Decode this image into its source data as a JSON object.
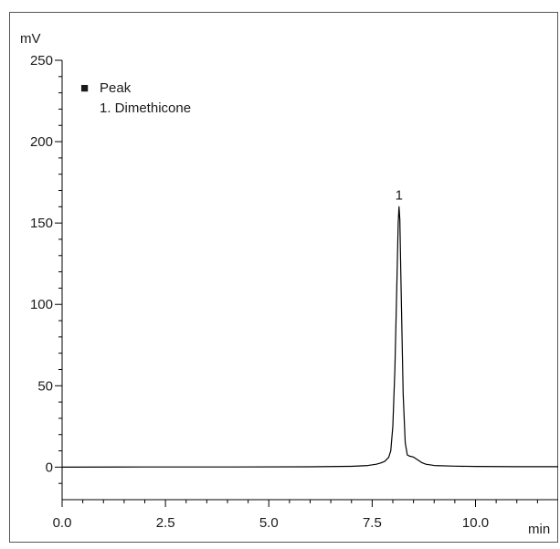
{
  "chart_data": {
    "type": "line",
    "title": "",
    "xlabel": "min",
    "ylabel": "mV",
    "xlim": [
      0,
      12
    ],
    "ylim": [
      -20,
      250
    ],
    "x_ticks": [
      0.0,
      2.5,
      5.0,
      7.5,
      10.0
    ],
    "x_tick_labels": [
      "0.0",
      "2.5",
      "5.0",
      "7.5",
      "10.0"
    ],
    "y_ticks": [
      0,
      50,
      100,
      150,
      200,
      250
    ],
    "y_tick_labels": [
      "0",
      "50",
      "100",
      "150",
      "200",
      "250"
    ],
    "grid": false,
    "legend": {
      "placement": "top-left",
      "marker": "■",
      "title": "Peak",
      "entries": [
        "1. Dimethicone"
      ]
    },
    "annotations": [
      {
        "text": "1",
        "x": 8.15,
        "y": 160
      }
    ],
    "series": [
      {
        "color": "#000000",
        "x": [
          0.0,
          2.0,
          4.0,
          6.0,
          7.0,
          7.4,
          7.6,
          7.7,
          7.8,
          7.9,
          7.95,
          8.0,
          8.05,
          8.1,
          8.13,
          8.15,
          8.17,
          8.2,
          8.25,
          8.3,
          8.35,
          8.4,
          8.5,
          8.6,
          8.7,
          8.8,
          9.0,
          9.5,
          10.0,
          11.0,
          12.0
        ],
        "y": [
          0.0,
          0.1,
          0.1,
          0.2,
          0.5,
          1.0,
          1.8,
          2.5,
          3.5,
          6.0,
          10.0,
          25.0,
          60.0,
          115.0,
          150.0,
          160.0,
          152.0,
          110.0,
          45.0,
          15.0,
          7.5,
          6.8,
          6.2,
          4.5,
          2.8,
          1.8,
          1.0,
          0.6,
          0.4,
          0.3,
          0.3
        ]
      }
    ]
  }
}
